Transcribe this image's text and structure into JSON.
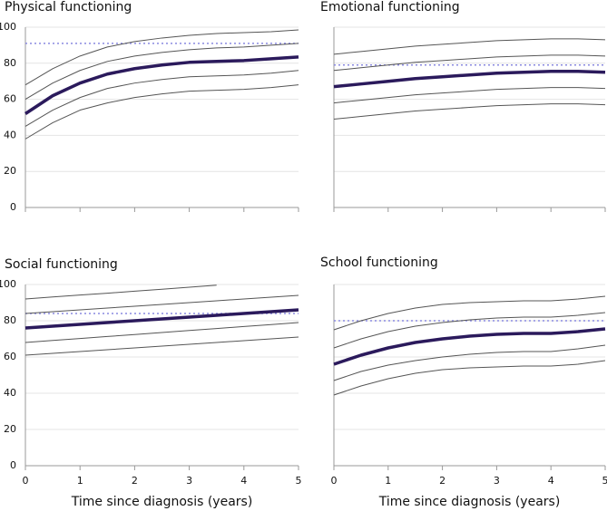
{
  "chart_data": [
    {
      "type": "line",
      "title": "Physical functioning",
      "x": [
        0,
        0.5,
        1,
        1.5,
        2,
        2.5,
        3,
        3.5,
        4,
        4.5,
        5
      ],
      "xlim": [
        0,
        5
      ],
      "xticks": [
        0,
        1,
        2,
        3,
        4,
        5
      ],
      "show_xtick_labels": false,
      "ylim": [
        0,
        100
      ],
      "yticks": [
        0,
        20,
        40,
        60,
        80,
        100
      ],
      "show_ytick_labels": true,
      "grid": true,
      "series": [
        {
          "color": "#8a8ae0",
          "style": "dotted",
          "width": 1.5,
          "values": [
            91,
            91,
            91,
            91,
            91,
            91,
            91,
            91,
            91,
            91,
            91
          ]
        },
        {
          "color": "#555555",
          "style": "solid",
          "width": 1,
          "values": [
            68,
            77,
            84,
            89,
            92,
            94,
            95.5,
            96.5,
            97,
            97.5,
            98.5
          ]
        },
        {
          "color": "#555555",
          "style": "solid",
          "width": 1,
          "values": [
            60,
            69,
            76,
            81,
            84,
            86,
            87.5,
            88.5,
            89,
            90,
            91
          ]
        },
        {
          "color": "#2b1a5c",
          "style": "solid",
          "width": 3.5,
          "values": [
            52,
            62,
            69,
            74,
            77,
            79,
            80.5,
            81,
            81.5,
            82.5,
            83.5
          ]
        },
        {
          "color": "#555555",
          "style": "solid",
          "width": 1,
          "values": [
            45,
            54,
            61,
            66,
            69,
            71,
            72.5,
            73,
            73.5,
            74.5,
            76
          ]
        },
        {
          "color": "#555555",
          "style": "solid",
          "width": 1,
          "values": [
            38,
            47,
            54,
            58,
            61,
            63,
            64.5,
            65,
            65.5,
            66.5,
            68
          ]
        }
      ]
    },
    {
      "type": "line",
      "title": "Emotional functioning",
      "x": [
        0,
        0.5,
        1,
        1.5,
        2,
        2.5,
        3,
        3.5,
        4,
        4.5,
        5
      ],
      "xlim": [
        0,
        5
      ],
      "xticks": [
        0,
        1,
        2,
        3,
        4,
        5
      ],
      "show_xtick_labels": false,
      "ylim": [
        0,
        100
      ],
      "yticks": [
        0,
        20,
        40,
        60,
        80,
        100
      ],
      "show_ytick_labels": false,
      "grid": true,
      "series": [
        {
          "color": "#8a8ae0",
          "style": "dotted",
          "width": 1.5,
          "values": [
            79,
            79,
            79,
            79,
            79,
            79,
            79,
            79,
            79,
            79,
            79
          ]
        },
        {
          "color": "#555555",
          "style": "solid",
          "width": 1,
          "values": [
            85,
            86.5,
            88,
            89.5,
            90.5,
            91.5,
            92.5,
            93,
            93.5,
            93.5,
            93
          ]
        },
        {
          "color": "#555555",
          "style": "solid",
          "width": 1,
          "values": [
            76,
            77.5,
            79,
            80.5,
            81.5,
            82.5,
            83.5,
            84,
            84.5,
            84.5,
            84
          ]
        },
        {
          "color": "#2b1a5c",
          "style": "solid",
          "width": 3.5,
          "values": [
            67,
            68.5,
            70,
            71.5,
            72.5,
            73.5,
            74.5,
            75,
            75.5,
            75.5,
            75
          ]
        },
        {
          "color": "#555555",
          "style": "solid",
          "width": 1,
          "values": [
            58,
            59.5,
            61,
            62.5,
            63.5,
            64.5,
            65.5,
            66,
            66.5,
            66.5,
            66
          ]
        },
        {
          "color": "#555555",
          "style": "solid",
          "width": 1,
          "values": [
            49,
            50.5,
            52,
            53.5,
            54.5,
            55.5,
            56.5,
            57,
            57.5,
            57.5,
            57
          ]
        }
      ]
    },
    {
      "type": "line",
      "title": "Social functioning",
      "xlabel": "Time since diagnosis (years)",
      "x": [
        0,
        0.5,
        1,
        1.5,
        2,
        2.5,
        3,
        3.5,
        4,
        4.5,
        5
      ],
      "xlim": [
        0,
        5
      ],
      "xticks": [
        0,
        1,
        2,
        3,
        4,
        5
      ],
      "show_xtick_labels": true,
      "ylim": [
        0,
        100
      ],
      "yticks": [
        0,
        20,
        40,
        60,
        80,
        100
      ],
      "show_ytick_labels": true,
      "grid": true,
      "series": [
        {
          "color": "#8a8ae0",
          "style": "dotted",
          "width": 1.5,
          "values": [
            84,
            84,
            84,
            84,
            84,
            84,
            84,
            84,
            84,
            84,
            84
          ]
        },
        {
          "color": "#555555",
          "style": "solid",
          "width": 1,
          "values": [
            92,
            93.1,
            94.2,
            95.2,
            96.3,
            97.4,
            98.5,
            99.6,
            null,
            null,
            null
          ]
        },
        {
          "color": "#555555",
          "style": "solid",
          "width": 1,
          "values": [
            84,
            85,
            86,
            87,
            88,
            89,
            90,
            91,
            92,
            93,
            94
          ]
        },
        {
          "color": "#2b1a5c",
          "style": "solid",
          "width": 3.5,
          "values": [
            76,
            77,
            78,
            79,
            80,
            81,
            82,
            83,
            84,
            85,
            86
          ]
        },
        {
          "color": "#555555",
          "style": "solid",
          "width": 1,
          "values": [
            68,
            69.1,
            70.2,
            71.3,
            72.4,
            73.5,
            74.6,
            75.7,
            76.8,
            77.9,
            79
          ]
        },
        {
          "color": "#555555",
          "style": "solid",
          "width": 1,
          "values": [
            61,
            62,
            63,
            64,
            65,
            66,
            67,
            68,
            69,
            70,
            71
          ]
        }
      ]
    },
    {
      "type": "line",
      "title": "School functioning",
      "xlabel": "Time since diagnosis (years)",
      "x": [
        0,
        0.5,
        1,
        1.5,
        2,
        2.5,
        3,
        3.5,
        4,
        4.5,
        5
      ],
      "xlim": [
        0,
        5
      ],
      "xticks": [
        0,
        1,
        2,
        3,
        4,
        5
      ],
      "show_xtick_labels": true,
      "ylim": [
        0,
        100
      ],
      "yticks": [
        0,
        20,
        40,
        60,
        80,
        100
      ],
      "show_ytick_labels": false,
      "grid": true,
      "series": [
        {
          "color": "#8a8ae0",
          "style": "dotted",
          "width": 1.5,
          "values": [
            80,
            80,
            80,
            80,
            80,
            80,
            80,
            80,
            80,
            80,
            80
          ]
        },
        {
          "color": "#555555",
          "style": "solid",
          "width": 1,
          "values": [
            75,
            80,
            84,
            87,
            89,
            90,
            90.5,
            91,
            91,
            92,
            93.5
          ]
        },
        {
          "color": "#555555",
          "style": "solid",
          "width": 1,
          "values": [
            65,
            70,
            74,
            77,
            79,
            80.5,
            81.5,
            82,
            82,
            83,
            84.5
          ]
        },
        {
          "color": "#2b1a5c",
          "style": "solid",
          "width": 3.5,
          "values": [
            56,
            61,
            65,
            68,
            70,
            71.5,
            72.5,
            73,
            73,
            74,
            75.5
          ]
        },
        {
          "color": "#555555",
          "style": "solid",
          "width": 1,
          "values": [
            47,
            52,
            55.5,
            58,
            60,
            61.5,
            62.5,
            63,
            63,
            64.5,
            66.5
          ]
        },
        {
          "color": "#555555",
          "style": "solid",
          "width": 1,
          "values": [
            39,
            44,
            48,
            51,
            53,
            54,
            54.5,
            55,
            55,
            56,
            58
          ]
        }
      ]
    }
  ]
}
